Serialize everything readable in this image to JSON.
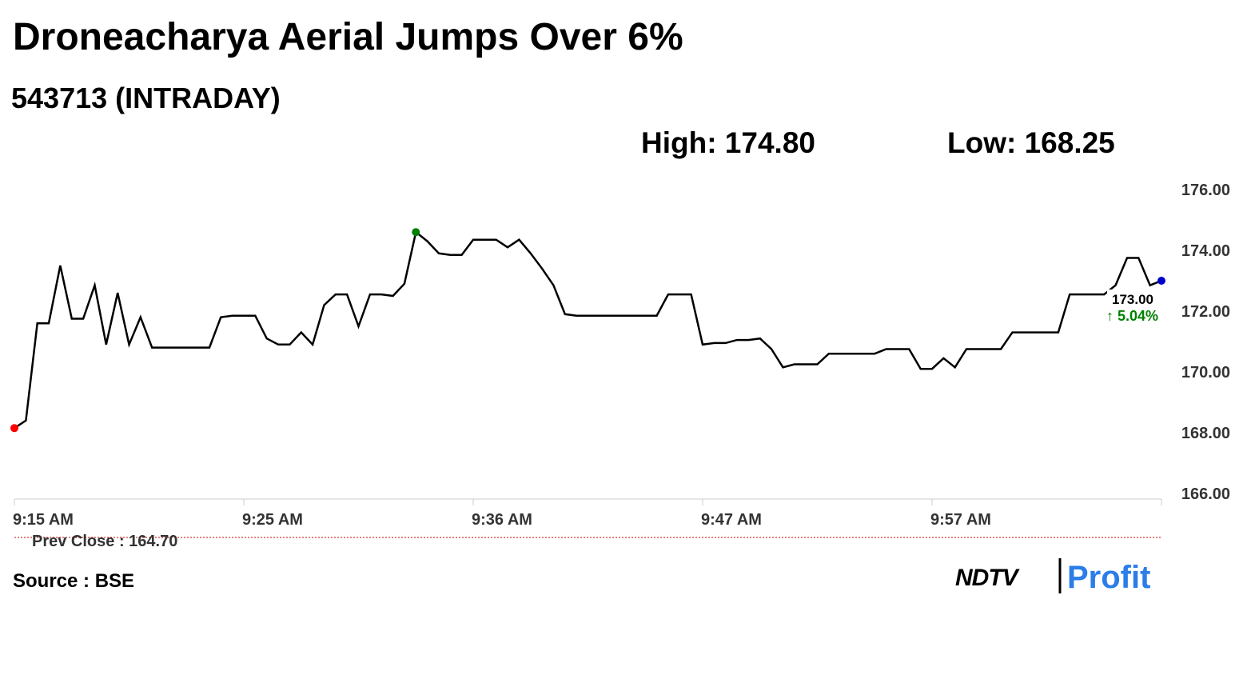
{
  "chart_data": {
    "type": "line",
    "title": "Droneacharya Aerial Jumps Over 6%",
    "subtitle": "543713 (INTRADAY)",
    "high_label": "High: 174.80",
    "low_label": "Low: 168.25",
    "values": [
      168.15,
      168.4,
      171.6,
      171.6,
      173.5,
      171.75,
      171.75,
      172.85,
      170.9,
      172.6,
      170.9,
      171.8,
      170.8,
      170.8,
      170.8,
      170.8,
      170.8,
      170.8,
      171.8,
      171.85,
      171.85,
      171.85,
      171.1,
      170.9,
      170.9,
      171.3,
      170.9,
      172.2,
      172.55,
      172.55,
      171.5,
      172.55,
      172.55,
      172.5,
      172.9,
      174.6,
      174.3,
      173.9,
      173.85,
      173.85,
      174.35,
      174.35,
      174.35,
      174.1,
      174.35,
      173.9,
      173.4,
      172.85,
      171.9,
      171.85,
      171.85,
      171.85,
      171.85,
      171.85,
      171.85,
      171.85,
      171.85,
      172.55,
      172.55,
      172.55,
      170.9,
      170.95,
      170.95,
      171.05,
      171.05,
      171.1,
      170.75,
      170.15,
      170.25,
      170.25,
      170.25,
      170.6,
      170.6,
      170.6,
      170.6,
      170.6,
      170.75,
      170.75,
      170.75,
      170.1,
      170.1,
      170.45,
      170.15,
      170.75,
      170.75,
      170.75,
      170.75,
      171.3,
      171.3,
      171.3,
      171.3,
      171.3,
      172.55,
      172.55,
      172.55,
      172.55,
      172.85,
      173.75,
      173.75,
      172.85,
      173.0
    ],
    "color": "#000000",
    "start_color": "#ff0000",
    "high_color": "#008000",
    "end_color": "#0000cc",
    "last_value_label": "173.00",
    "change_label": "↑ 5.04%",
    "change_color": "#008000",
    "xlim": [
      0,
      100
    ],
    "xticks": [
      {
        "value": 0,
        "label": "9:15 AM"
      },
      {
        "value": 20,
        "label": "9:25 AM"
      },
      {
        "value": 40,
        "label": "9:36 AM"
      },
      {
        "value": 60,
        "label": "9:47 AM"
      },
      {
        "value": 80,
        "label": "9:57 AM"
      }
    ],
    "ylim": [
      166,
      176
    ],
    "yticks": [
      {
        "value": 166,
        "label": "166.00"
      },
      {
        "value": 168,
        "label": "168.00"
      },
      {
        "value": 170,
        "label": "170.00"
      },
      {
        "value": 172,
        "label": "172.00"
      },
      {
        "value": 174,
        "label": "174.00"
      },
      {
        "value": 176,
        "label": "176.00"
      }
    ],
    "prev_close": {
      "value": 164.7,
      "label": "Prev Close : 164.70",
      "color": "#cc0000"
    },
    "source": "Source : BSE",
    "brand": [
      "NDTV",
      "Profit"
    ]
  }
}
